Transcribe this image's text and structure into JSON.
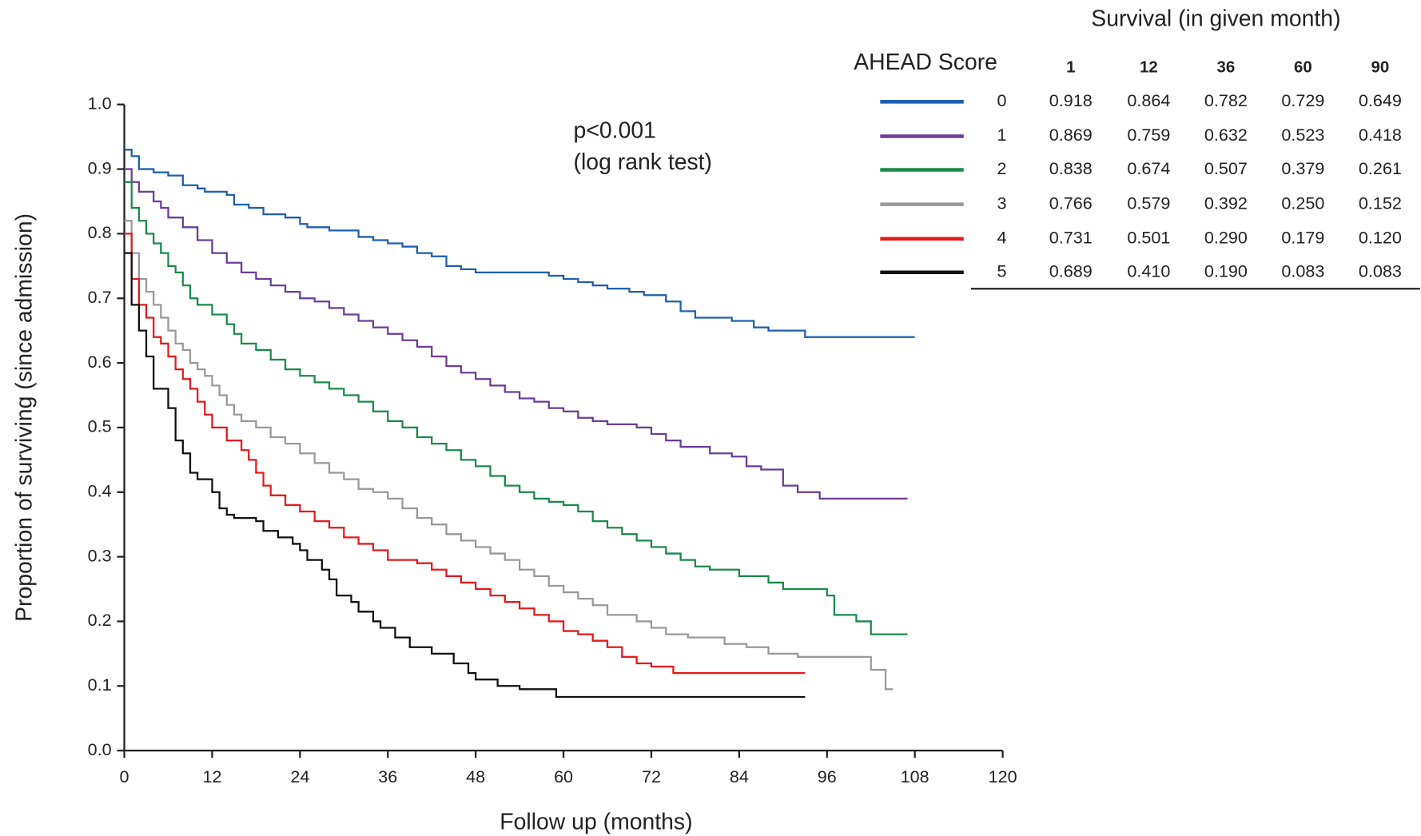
{
  "chart_data": {
    "type": "step",
    "xlabel": "Follow up (months)",
    "ylabel": "Proportion of surviving (since admission)",
    "annotations": [
      "p<0.001",
      "(log rank test)"
    ],
    "xlim": [
      0,
      120
    ],
    "xticks": [
      0,
      12,
      24,
      36,
      48,
      60,
      72,
      84,
      96,
      108,
      120
    ],
    "ylim": [
      0,
      1
    ],
    "yticks": [
      {
        "value": 0,
        "label": "0.0"
      },
      0.1,
      0.2,
      0.3,
      0.4,
      0.5,
      0.6,
      0.7,
      0.8,
      0.9,
      {
        "value": 1,
        "label": "1.0"
      }
    ],
    "series": [
      {
        "name": "0",
        "color": "#1f5fad",
        "x": [
          0,
          1,
          2,
          4,
          6,
          8,
          10,
          11,
          14,
          15,
          17,
          19,
          22,
          24,
          25,
          28,
          32,
          34,
          36,
          38,
          40,
          42,
          44,
          46,
          48,
          51,
          58,
          60,
          62,
          64,
          66,
          69,
          71,
          74,
          76,
          78,
          83,
          86,
          88,
          93,
          108
        ],
        "values": [
          0.93,
          0.92,
          0.9,
          0.895,
          0.89,
          0.875,
          0.87,
          0.865,
          0.86,
          0.845,
          0.84,
          0.83,
          0.825,
          0.815,
          0.81,
          0.805,
          0.795,
          0.79,
          0.785,
          0.78,
          0.77,
          0.765,
          0.75,
          0.745,
          0.74,
          0.74,
          0.735,
          0.73,
          0.725,
          0.72,
          0.715,
          0.71,
          0.705,
          0.695,
          0.68,
          0.67,
          0.665,
          0.655,
          0.65,
          0.64,
          0.64
        ]
      },
      {
        "name": "1",
        "color": "#6a3d9a",
        "x": [
          0,
          1,
          2,
          4,
          5,
          6,
          8,
          10,
          12,
          14,
          16,
          18,
          20,
          22,
          24,
          26,
          28,
          30,
          32,
          34,
          36,
          38,
          40,
          42,
          44,
          46,
          48,
          50,
          52,
          54,
          56,
          58,
          60,
          62,
          64,
          66,
          70,
          72,
          74,
          76,
          80,
          83,
          85,
          87,
          90,
          92,
          95,
          107
        ],
        "values": [
          0.9,
          0.88,
          0.865,
          0.85,
          0.84,
          0.825,
          0.81,
          0.79,
          0.77,
          0.755,
          0.74,
          0.73,
          0.72,
          0.71,
          0.7,
          0.695,
          0.685,
          0.675,
          0.665,
          0.655,
          0.645,
          0.635,
          0.625,
          0.61,
          0.595,
          0.585,
          0.575,
          0.565,
          0.555,
          0.545,
          0.54,
          0.53,
          0.525,
          0.515,
          0.51,
          0.505,
          0.5,
          0.49,
          0.48,
          0.47,
          0.46,
          0.455,
          0.44,
          0.435,
          0.41,
          0.4,
          0.39,
          0.39
        ]
      },
      {
        "name": "2",
        "color": "#1a8a4a",
        "x": [
          0,
          1,
          2,
          3,
          4,
          5,
          6,
          7,
          8,
          9,
          10,
          12,
          14,
          15,
          16,
          18,
          20,
          22,
          24,
          26,
          28,
          30,
          32,
          34,
          36,
          38,
          40,
          42,
          44,
          46,
          48,
          50,
          52,
          54,
          56,
          58,
          60,
          62,
          64,
          66,
          68,
          70,
          72,
          74,
          76,
          78,
          80,
          84,
          88,
          90,
          96,
          97,
          100,
          102,
          107
        ],
        "values": [
          0.88,
          0.84,
          0.82,
          0.8,
          0.785,
          0.77,
          0.75,
          0.74,
          0.72,
          0.7,
          0.69,
          0.675,
          0.66,
          0.645,
          0.63,
          0.62,
          0.605,
          0.59,
          0.58,
          0.57,
          0.56,
          0.55,
          0.54,
          0.525,
          0.51,
          0.5,
          0.485,
          0.475,
          0.465,
          0.45,
          0.44,
          0.425,
          0.41,
          0.4,
          0.39,
          0.385,
          0.38,
          0.37,
          0.355,
          0.345,
          0.335,
          0.325,
          0.315,
          0.305,
          0.295,
          0.285,
          0.28,
          0.27,
          0.26,
          0.25,
          0.24,
          0.21,
          0.2,
          0.18,
          0.18
        ]
      },
      {
        "name": "3",
        "color": "#999999",
        "x": [
          0,
          1,
          2,
          3,
          4,
          5,
          6,
          7,
          8,
          9,
          10,
          11,
          12,
          13,
          14,
          15,
          16,
          18,
          20,
          22,
          24,
          26,
          28,
          30,
          32,
          34,
          36,
          38,
          40,
          42,
          44,
          46,
          48,
          50,
          52,
          54,
          56,
          58,
          60,
          62,
          64,
          66,
          70,
          72,
          74,
          77,
          82,
          85,
          88,
          92,
          102,
          104,
          105
        ],
        "values": [
          0.82,
          0.77,
          0.73,
          0.71,
          0.69,
          0.67,
          0.65,
          0.63,
          0.62,
          0.6,
          0.59,
          0.58,
          0.565,
          0.55,
          0.535,
          0.52,
          0.51,
          0.5,
          0.485,
          0.475,
          0.46,
          0.445,
          0.43,
          0.42,
          0.405,
          0.4,
          0.39,
          0.375,
          0.36,
          0.35,
          0.335,
          0.325,
          0.315,
          0.305,
          0.295,
          0.28,
          0.27,
          0.255,
          0.245,
          0.235,
          0.225,
          0.21,
          0.2,
          0.19,
          0.18,
          0.175,
          0.165,
          0.16,
          0.15,
          0.145,
          0.125,
          0.095,
          0.095
        ]
      },
      {
        "name": "4",
        "color": "#e31a1c",
        "x": [
          0,
          1,
          2,
          3,
          4,
          5,
          6,
          7,
          8,
          9,
          10,
          11,
          12,
          14,
          16,
          17,
          18,
          19,
          20,
          22,
          24,
          26,
          28,
          30,
          32,
          34,
          36,
          40,
          42,
          44,
          46,
          48,
          50,
          52,
          54,
          56,
          58,
          60,
          62,
          64,
          66,
          68,
          70,
          72,
          75,
          93
        ],
        "values": [
          0.8,
          0.73,
          0.69,
          0.67,
          0.64,
          0.63,
          0.61,
          0.59,
          0.575,
          0.56,
          0.54,
          0.52,
          0.5,
          0.48,
          0.465,
          0.45,
          0.43,
          0.41,
          0.395,
          0.38,
          0.37,
          0.355,
          0.345,
          0.33,
          0.32,
          0.31,
          0.295,
          0.29,
          0.28,
          0.27,
          0.26,
          0.25,
          0.24,
          0.23,
          0.22,
          0.21,
          0.2,
          0.185,
          0.18,
          0.17,
          0.16,
          0.145,
          0.135,
          0.13,
          0.12,
          0.12
        ]
      },
      {
        "name": "5",
        "color": "#111111",
        "x": [
          0,
          1,
          2,
          3,
          4,
          6,
          7,
          8,
          9,
          10,
          12,
          13,
          14,
          15,
          18,
          19,
          21,
          23,
          24,
          25,
          27,
          28,
          29,
          31,
          32,
          34,
          35,
          37,
          39,
          42,
          45,
          47,
          48,
          51,
          54,
          59,
          93
        ],
        "values": [
          0.77,
          0.69,
          0.65,
          0.61,
          0.56,
          0.53,
          0.48,
          0.46,
          0.43,
          0.42,
          0.4,
          0.375,
          0.365,
          0.36,
          0.355,
          0.34,
          0.33,
          0.32,
          0.31,
          0.295,
          0.28,
          0.265,
          0.24,
          0.23,
          0.215,
          0.2,
          0.19,
          0.175,
          0.16,
          0.15,
          0.135,
          0.12,
          0.11,
          0.1,
          0.095,
          0.083,
          0.083
        ]
      }
    ],
    "table": {
      "title": "Survival (in given month)",
      "header": "AHEAD Score",
      "columns": [
        "1",
        "12",
        "36",
        "60",
        "90"
      ],
      "rows": [
        [
          "0.918",
          "0.864",
          "0.782",
          "0.729",
          "0.649"
        ],
        [
          "0.869",
          "0.759",
          "0.632",
          "0.523",
          "0.418"
        ],
        [
          "0.838",
          "0.674",
          "0.507",
          "0.379",
          "0.261"
        ],
        [
          "0.766",
          "0.579",
          "0.392",
          "0.250",
          "0.152"
        ],
        [
          "0.731",
          "0.501",
          "0.290",
          "0.179",
          "0.120"
        ],
        [
          "0.689",
          "0.410",
          "0.190",
          "0.083",
          "0.083"
        ]
      ]
    }
  }
}
